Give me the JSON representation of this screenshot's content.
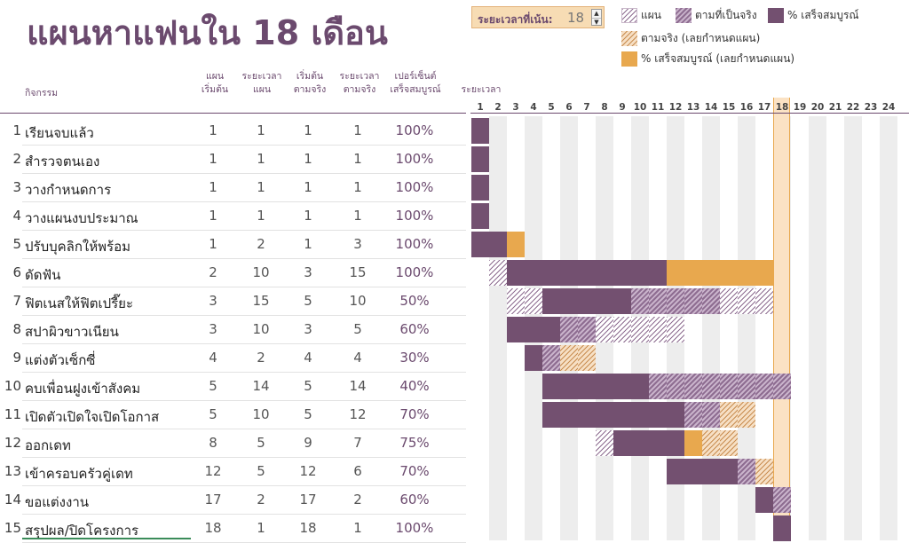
{
  "title": "แผนหาแฟนใน 18 เดือน",
  "highlight_period": {
    "label": "ระยะเวลาที่เน้น:",
    "value": "18"
  },
  "legend": {
    "plan": "แผน",
    "actual": "ตามที่เป็นจริง",
    "complete": "% เสร็จสมบูรณ์",
    "beyond": "ตามจริง (เลยกำหนดแผน)",
    "beyond_complete": "% เสร็จสมบูรณ์ (เลยกำหนดแผน)"
  },
  "headers": {
    "activity": "กิจกรรม",
    "plan_start": [
      "แผน",
      "เริ่มต้น"
    ],
    "plan_duration": [
      "ระยะเวลา",
      "แผน"
    ],
    "actual_start": [
      "เริ่มต้น",
      "ตามจริง"
    ],
    "actual_duration": [
      "ระยะเวลา",
      "ตามจริง"
    ],
    "percent_complete": [
      "เปอร์เซ็นต์",
      "เสร็จสมบูรณ์"
    ],
    "periods": "ระยะเวลา"
  },
  "periods": [
    "1",
    "2",
    "3",
    "4",
    "5",
    "6",
    "7",
    "8",
    "9",
    "10",
    "11",
    "12",
    "13",
    "14",
    "15",
    "16",
    "17",
    "18",
    "19",
    "20",
    "21",
    "22",
    "23",
    "24"
  ],
  "colors": {
    "brand": "#6b4a6e",
    "complete": "#735070",
    "beyond": "#e8a84e",
    "highlight": "#fbe2c4"
  },
  "activities": [
    {
      "num": "1",
      "name": "เรียนจบแล้ว",
      "plan_start": "1",
      "plan_duration": "1",
      "actual_start": "1",
      "actual_duration": "1",
      "percent": "100%"
    },
    {
      "num": "2",
      "name": "สำรวจตนเอง",
      "plan_start": "1",
      "plan_duration": "1",
      "actual_start": "1",
      "actual_duration": "1",
      "percent": "100%"
    },
    {
      "num": "3",
      "name": "วางกำหนดการ",
      "plan_start": "1",
      "plan_duration": "1",
      "actual_start": "1",
      "actual_duration": "1",
      "percent": "100%"
    },
    {
      "num": "4",
      "name": "วางแผนงบประมาณ",
      "plan_start": "1",
      "plan_duration": "1",
      "actual_start": "1",
      "actual_duration": "1",
      "percent": "100%"
    },
    {
      "num": "5",
      "name": "ปรับบุคลิกให้พร้อม",
      "plan_start": "1",
      "plan_duration": "2",
      "actual_start": "1",
      "actual_duration": "3",
      "percent": "100%"
    },
    {
      "num": "6",
      "name": "ดัดฟัน",
      "plan_start": "2",
      "plan_duration": "10",
      "actual_start": "3",
      "actual_duration": "15",
      "percent": "100%"
    },
    {
      "num": "7",
      "name": "ฟิตเนสให้ฟิตเปรี๊ยะ",
      "plan_start": "3",
      "plan_duration": "15",
      "actual_start": "5",
      "actual_duration": "10",
      "percent": "50%"
    },
    {
      "num": "8",
      "name": "สปาผิวขาวเนียน",
      "plan_start": "3",
      "plan_duration": "10",
      "actual_start": "3",
      "actual_duration": "5",
      "percent": "60%"
    },
    {
      "num": "9",
      "name": "แต่งตัวเซ็กซี่",
      "plan_start": "4",
      "plan_duration": "2",
      "actual_start": "4",
      "actual_duration": "4",
      "percent": "30%"
    },
    {
      "num": "10",
      "name": "คบเพื่อนฝูงเข้าสังคม",
      "plan_start": "5",
      "plan_duration": "14",
      "actual_start": "5",
      "actual_duration": "14",
      "percent": "40%"
    },
    {
      "num": "11",
      "name": "เปิดตัวเปิดใจเปิดโอกาส",
      "plan_start": "5",
      "plan_duration": "10",
      "actual_start": "5",
      "actual_duration": "12",
      "percent": "70%"
    },
    {
      "num": "12",
      "name": "ออกเดท",
      "plan_start": "8",
      "plan_duration": "5",
      "actual_start": "9",
      "actual_duration": "7",
      "percent": "75%"
    },
    {
      "num": "13",
      "name": "เข้าครอบครัวคู่เดท",
      "plan_start": "12",
      "plan_duration": "5",
      "actual_start": "12",
      "actual_duration": "6",
      "percent": "70%"
    },
    {
      "num": "14",
      "name": "ขอแต่งงาน",
      "plan_start": "17",
      "plan_duration": "2",
      "actual_start": "17",
      "actual_duration": "2",
      "percent": "60%"
    },
    {
      "num": "15",
      "name": "สรุปผล/ปิดโครงการ",
      "plan_start": "18",
      "plan_duration": "1",
      "actual_start": "18",
      "actual_duration": "1",
      "percent": "100%"
    }
  ]
}
